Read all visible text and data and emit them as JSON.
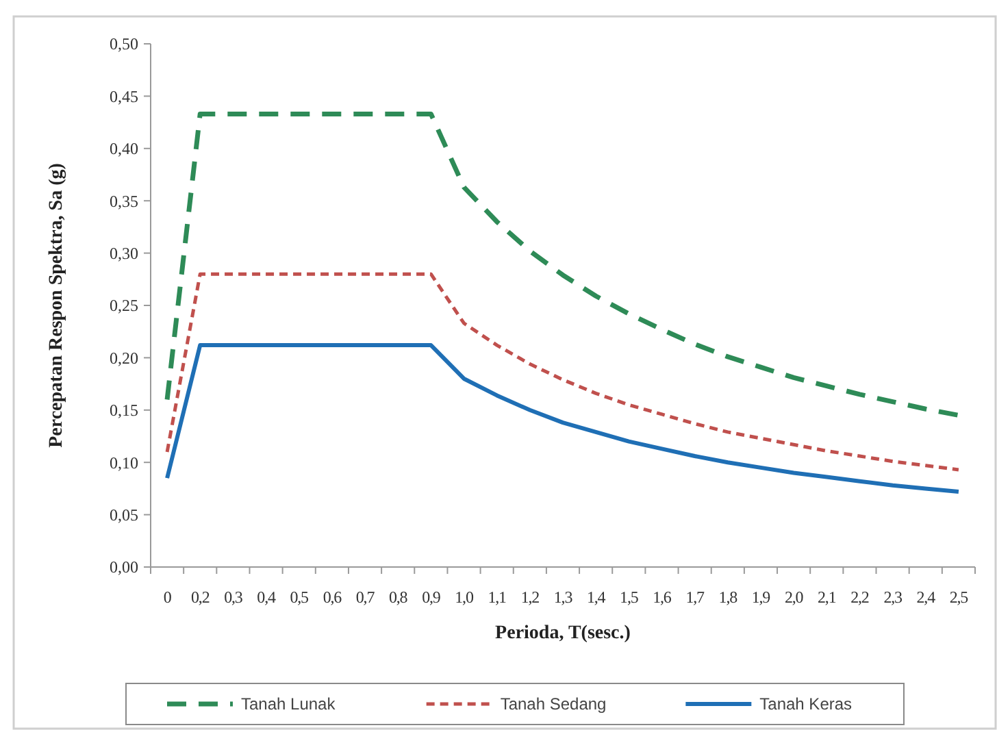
{
  "chart_data": {
    "type": "line",
    "xlabel": "Perioda, T(sesc.)",
    "ylabel": "Percepatan Respon Spektra, Sa (g)",
    "categories": [
      "0",
      "0,2",
      "0,3",
      "0,4",
      "0,5",
      "0,6",
      "0,7",
      "0,8",
      "0,9",
      "1,0",
      "1,1",
      "1,2",
      "1,3",
      "1,4",
      "1,5",
      "1,6",
      "1,7",
      "1,8",
      "1,9",
      "2,0",
      "2,1",
      "2,2",
      "2,3",
      "2,4",
      "2,5"
    ],
    "ylim": [
      0,
      0.5
    ],
    "yticks": [
      {
        "value": 0,
        "label": "0,00"
      },
      {
        "value": 0.05,
        "label": "0,05"
      },
      {
        "value": 0.1,
        "label": "0,10"
      },
      {
        "value": 0.15,
        "label": "0,15"
      },
      {
        "value": 0.2,
        "label": "0,20"
      },
      {
        "value": 0.25,
        "label": "0,25"
      },
      {
        "value": 0.3,
        "label": "0,30"
      },
      {
        "value": 0.35,
        "label": "0,35"
      },
      {
        "value": 0.4,
        "label": "0,40"
      },
      {
        "value": 0.45,
        "label": "0,45"
      },
      {
        "value": 0.5,
        "label": "0,50"
      }
    ],
    "grid": false,
    "legend": "bottom",
    "marker": "none",
    "series": [
      {
        "name": "Tanah Lunak",
        "color": "#2e8b57",
        "line_style": "dashed",
        "values": [
          0.16,
          0.433,
          0.433,
          0.433,
          0.433,
          0.433,
          0.433,
          0.433,
          0.433,
          0.363,
          0.33,
          0.302,
          0.279,
          0.259,
          0.242,
          0.227,
          0.213,
          0.201,
          0.191,
          0.181,
          0.173,
          0.165,
          0.158,
          0.151,
          0.145
        ]
      },
      {
        "name": "Tanah Sedang",
        "color": "#c0504d",
        "line_style": "dotted",
        "values": [
          0.11,
          0.28,
          0.28,
          0.28,
          0.28,
          0.28,
          0.28,
          0.28,
          0.28,
          0.233,
          0.212,
          0.194,
          0.179,
          0.166,
          0.155,
          0.146,
          0.137,
          0.129,
          0.123,
          0.117,
          0.111,
          0.106,
          0.101,
          0.097,
          0.093
        ]
      },
      {
        "name": "Tanah Keras",
        "color": "#1f6fb5",
        "line_style": "solid",
        "values": [
          0.085,
          0.212,
          0.212,
          0.212,
          0.212,
          0.212,
          0.212,
          0.212,
          0.212,
          0.18,
          0.164,
          0.15,
          0.138,
          0.129,
          0.12,
          0.113,
          0.106,
          0.1,
          0.095,
          0.09,
          0.086,
          0.082,
          0.078,
          0.075,
          0.072
        ]
      }
    ]
  }
}
